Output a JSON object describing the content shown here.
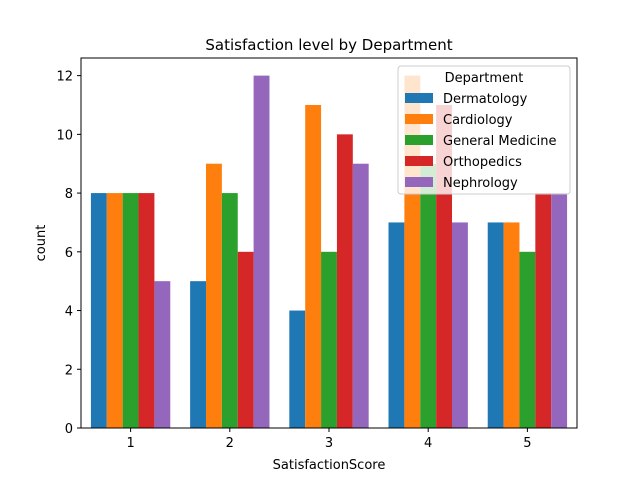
{
  "chart_data": {
    "type": "bar",
    "title": "Satisfaction level by Department",
    "xlabel": "SatisfactionScore",
    "ylabel": "count",
    "categories": [
      "1",
      "2",
      "3",
      "4",
      "5"
    ],
    "ylim": [
      0,
      12.6
    ],
    "yticks": [
      "0",
      "2",
      "4",
      "6",
      "8",
      "10",
      "12"
    ],
    "grid": false,
    "legend": {
      "title": "Department",
      "placement": "top-right"
    },
    "series": [
      {
        "name": "Dermatology",
        "color": "#1f77b4",
        "values": [
          8,
          5,
          4,
          7,
          7
        ]
      },
      {
        "name": "Cardiology",
        "color": "#ff7f0e",
        "values": [
          8,
          9,
          11,
          12,
          7
        ]
      },
      {
        "name": "General Medicine",
        "color": "#2ca02c",
        "values": [
          8,
          8,
          6,
          9,
          6
        ]
      },
      {
        "name": "Orthopedics",
        "color": "#d62728",
        "values": [
          8,
          6,
          10,
          11,
          8
        ]
      },
      {
        "name": "Nephrology",
        "color": "#9467bd",
        "values": [
          5,
          12,
          9,
          7,
          8
        ]
      }
    ]
  }
}
